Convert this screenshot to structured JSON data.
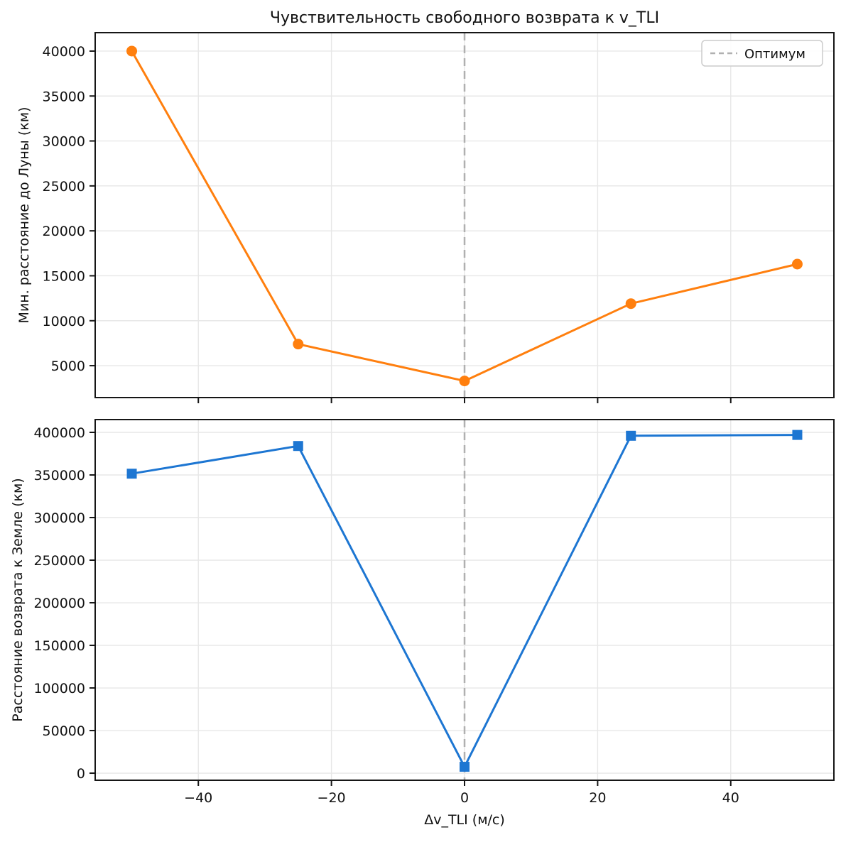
{
  "title": "Чувствительность свободного возврата к v_TLI",
  "legend": {
    "label": "Оптимум",
    "dash_color": "#b0b0b0"
  },
  "colors": {
    "moon_series": "#ff7f0e",
    "earth_series": "#1d76d2",
    "optimum_line": "#b0b0b0"
  },
  "chart_data": [
    {
      "type": "line",
      "name": "moon-min-distance",
      "x": [
        -50,
        -25,
        0,
        25,
        50
      ],
      "values": [
        40000,
        7400,
        3300,
        11900,
        16300
      ],
      "marker": "circle",
      "color": "#ff7f0e",
      "ylabel": "Мин. расстояние до Луны (км)",
      "xlabel": "",
      "yticks": [
        5000,
        10000,
        15000,
        20000,
        25000,
        30000,
        35000,
        40000
      ],
      "xticks": [
        -40,
        -20,
        0,
        20,
        40
      ],
      "ylim": [
        1450,
        42050
      ],
      "xlim": [
        -55.5,
        55.5
      ],
      "grid": true,
      "show_xticklabels": false,
      "vline_x": 0,
      "legend": true,
      "legend_position": "upper right"
    },
    {
      "type": "line",
      "name": "earth-return-distance",
      "x": [
        -50,
        -25,
        0,
        25,
        50
      ],
      "values": [
        351500,
        384000,
        7500,
        396000,
        397000
      ],
      "marker": "square",
      "color": "#1d76d2",
      "ylabel": "Расстояние возврата к Земле (км)",
      "xlabel": "Δv_TLI (м/с)",
      "yticks": [
        0,
        50000,
        100000,
        150000,
        200000,
        250000,
        300000,
        350000,
        400000
      ],
      "xticks": [
        -40,
        -20,
        0,
        20,
        40
      ],
      "ylim": [
        -8300,
        415000
      ],
      "xlim": [
        -55.5,
        55.5
      ],
      "grid": true,
      "show_xticklabels": true,
      "vline_x": 0,
      "legend": false
    }
  ]
}
